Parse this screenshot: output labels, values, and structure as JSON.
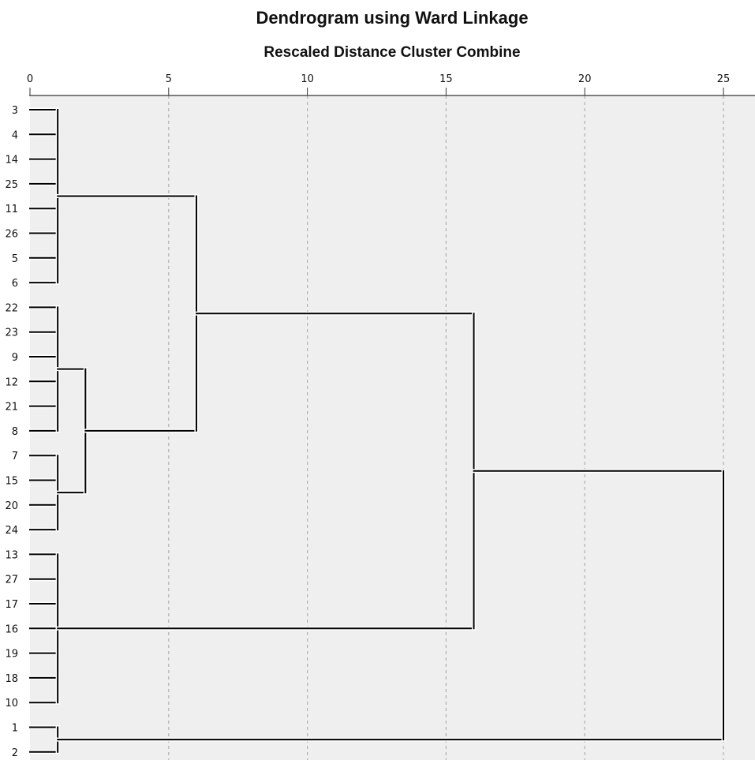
{
  "chart_data": {
    "type": "dendrogram",
    "title": "Dendrogram using Ward Linkage",
    "xlabel": "Rescaled Distance Cluster Combine",
    "xlim": [
      0,
      25
    ],
    "xticks": [
      0,
      5,
      10,
      15,
      20,
      25
    ],
    "grid": true,
    "leaves": [
      "3",
      "4",
      "14",
      "25",
      "11",
      "26",
      "5",
      "6",
      "22",
      "23",
      "9",
      "12",
      "21",
      "8",
      "7",
      "15",
      "20",
      "24",
      "13",
      "27",
      "17",
      "16",
      "19",
      "18",
      "10",
      "1",
      "2"
    ],
    "merges": [
      {
        "id": "A",
        "children": [
          "3",
          "4",
          "14",
          "25",
          "11",
          "26",
          "5",
          "6"
        ],
        "distance": 1
      },
      {
        "id": "B",
        "children": [
          "22",
          "23",
          "9",
          "12",
          "21",
          "8"
        ],
        "distance": 1
      },
      {
        "id": "C",
        "children": [
          "7",
          "15",
          "20",
          "24"
        ],
        "distance": 1
      },
      {
        "id": "D",
        "children": [
          "13",
          "27",
          "17",
          "16",
          "19",
          "18",
          "10"
        ],
        "distance": 1
      },
      {
        "id": "E",
        "children": [
          "1",
          "2"
        ],
        "distance": 1
      },
      {
        "id": "F",
        "children": [
          "B",
          "C"
        ],
        "distance": 2
      },
      {
        "id": "G",
        "children": [
          "A",
          "F"
        ],
        "distance": 6
      },
      {
        "id": "H",
        "children": [
          "G",
          "D"
        ],
        "distance": 16
      },
      {
        "id": "I",
        "children": [
          "H",
          "E"
        ],
        "distance": 25
      }
    ],
    "colors": {
      "plot_background": "#efefef",
      "grid": "#b0b0b0",
      "line": "#000000",
      "halo": "#ffffff"
    }
  }
}
